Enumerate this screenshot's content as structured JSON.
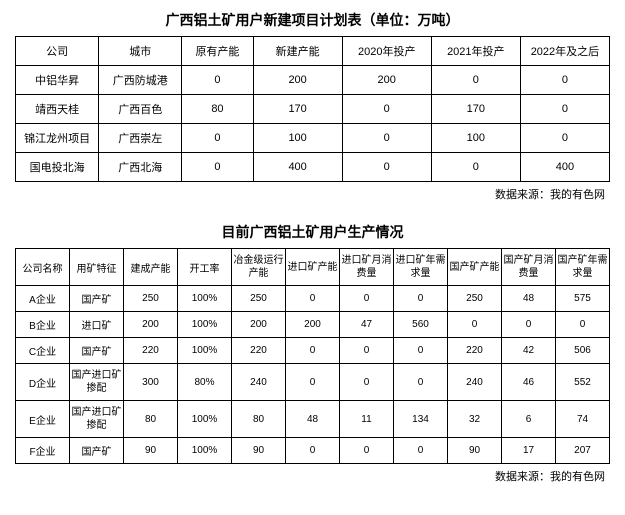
{
  "table1": {
    "title": "广西铝土矿用户新建项目计划表（单位：万吨）",
    "columns": [
      "公司",
      "城市",
      "原有产能",
      "新建产能",
      "2020年投产",
      "2021年投产",
      "2022年及之后"
    ],
    "rows": [
      [
        "中铝华昇",
        "广西防城港",
        "0",
        "200",
        "200",
        "0",
        "0"
      ],
      [
        "靖西天桂",
        "广西百色",
        "80",
        "170",
        "0",
        "170",
        "0"
      ],
      [
        "锦江龙州项目",
        "广西崇左",
        "0",
        "100",
        "0",
        "100",
        "0"
      ],
      [
        "国电投北海",
        "广西北海",
        "0",
        "400",
        "0",
        "0",
        "400"
      ]
    ],
    "source": "数据来源：我的有色网"
  },
  "table2": {
    "title": "目前广西铝土矿用户生产情况",
    "columns": [
      "公司名称",
      "用矿特征",
      "建成产能",
      "开工率",
      "冶金级运行产能",
      "进口矿产能",
      "进口矿月消费量",
      "进口矿年需求量",
      "国产矿产能",
      "国产矿月消费量",
      "国产矿年需求量"
    ],
    "rows": [
      [
        "A企业",
        "国产矿",
        "250",
        "100%",
        "250",
        "0",
        "0",
        "0",
        "250",
        "48",
        "575"
      ],
      [
        "B企业",
        "进口矿",
        "200",
        "100%",
        "200",
        "200",
        "47",
        "560",
        "0",
        "0",
        "0"
      ],
      [
        "C企业",
        "国产矿",
        "220",
        "100%",
        "220",
        "0",
        "0",
        "0",
        "220",
        "42",
        "506"
      ],
      [
        "D企业",
        "国产进口矿掺配",
        "300",
        "80%",
        "240",
        "0",
        "0",
        "0",
        "240",
        "46",
        "552"
      ],
      [
        "E企业",
        "国产进口矿掺配",
        "80",
        "100%",
        "80",
        "48",
        "11",
        "134",
        "32",
        "6",
        "74"
      ],
      [
        "F企业",
        "国产矿",
        "90",
        "100%",
        "90",
        "0",
        "0",
        "0",
        "90",
        "17",
        "207"
      ]
    ],
    "source": "数据来源：我的有色网"
  }
}
